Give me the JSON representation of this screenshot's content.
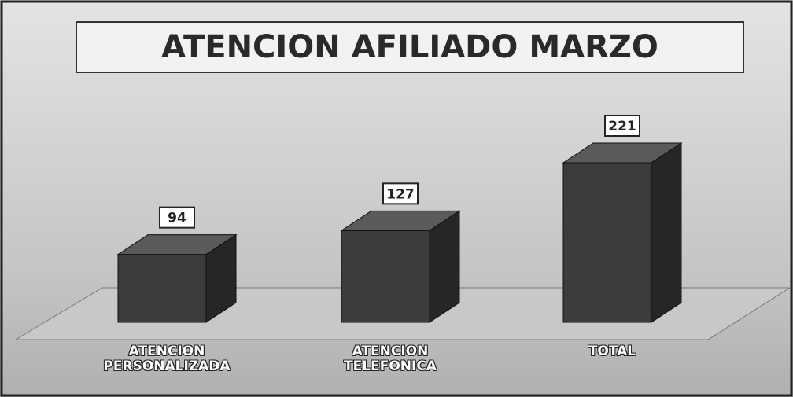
{
  "chart_data": {
    "type": "bar3d",
    "title": "ATENCION AFILIADO MARZO",
    "categories": [
      "ATENCION PERSONALIZADA",
      "ATENCION TELEFONICA",
      "TOTAL"
    ],
    "values": [
      94,
      127,
      221
    ],
    "color": "#3c3c3c"
  }
}
